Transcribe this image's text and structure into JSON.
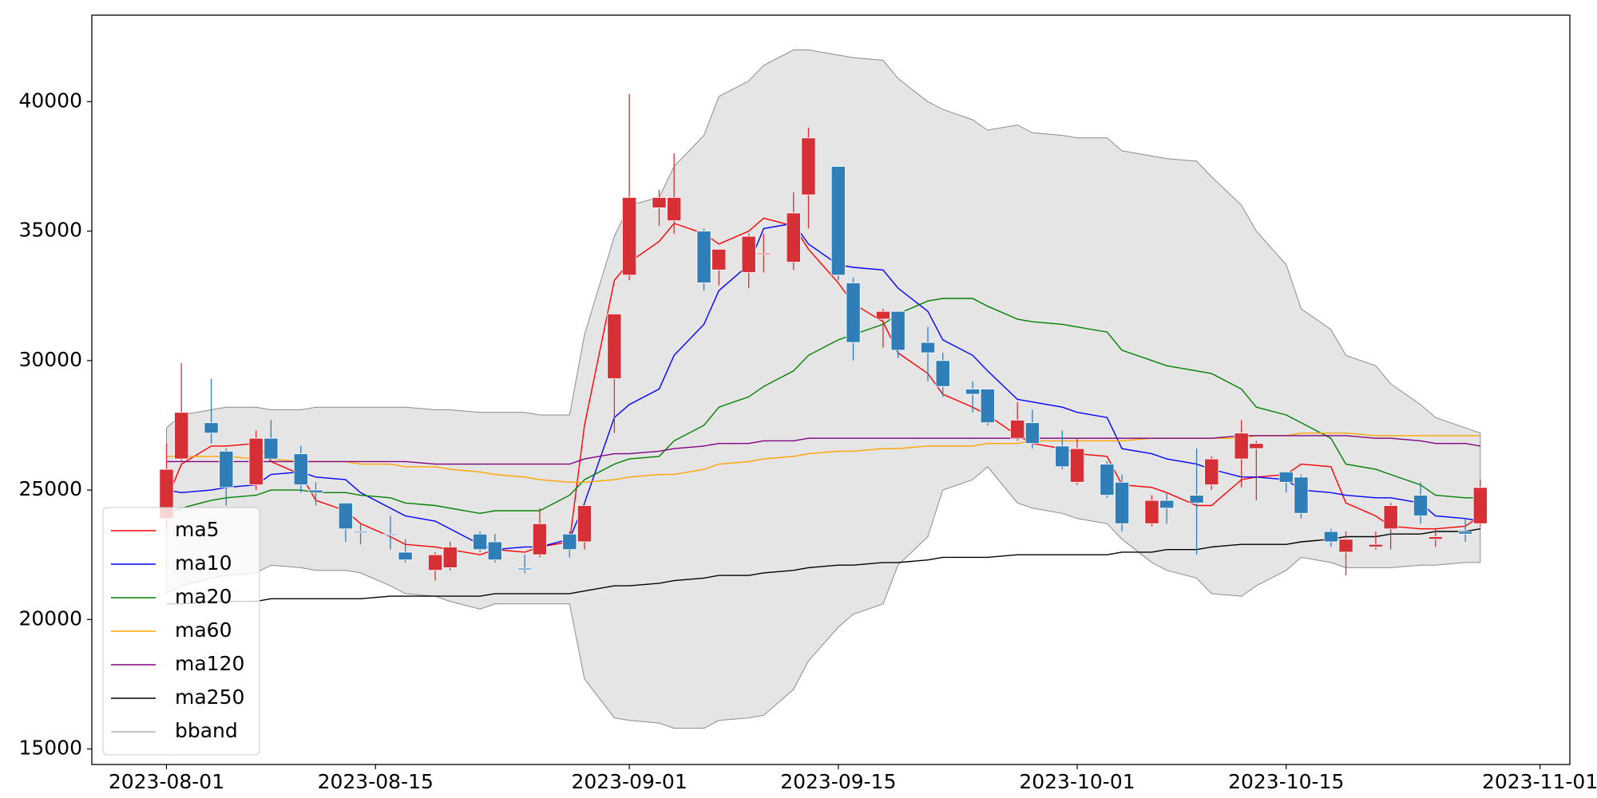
{
  "chart_data": {
    "type": "candlestick",
    "x": [
      "2023-08-01",
      "2023-08-02",
      "2023-08-04",
      "2023-08-05",
      "2023-08-07",
      "2023-08-08",
      "2023-08-10",
      "2023-08-11",
      "2023-08-13",
      "2023-08-14",
      "2023-08-16",
      "2023-08-17",
      "2023-08-19",
      "2023-08-20",
      "2023-08-22",
      "2023-08-23",
      "2023-08-25",
      "2023-08-26",
      "2023-08-28",
      "2023-08-29",
      "2023-08-31",
      "2023-09-01",
      "2023-09-03",
      "2023-09-04",
      "2023-09-06",
      "2023-09-07",
      "2023-09-09",
      "2023-09-10",
      "2023-09-12",
      "2023-09-13",
      "2023-09-15",
      "2023-09-16",
      "2023-09-18",
      "2023-09-19",
      "2023-09-21",
      "2023-09-22",
      "2023-09-24",
      "2023-09-25",
      "2023-09-27",
      "2023-09-28",
      "2023-09-30",
      "2023-10-01",
      "2023-10-03",
      "2023-10-04",
      "2023-10-06",
      "2023-10-07",
      "2023-10-09",
      "2023-10-10",
      "2023-10-12",
      "2023-10-13",
      "2023-10-15",
      "2023-10-16",
      "2023-10-18",
      "2023-10-19",
      "2023-10-21",
      "2023-10-22",
      "2023-10-24",
      "2023-10-25",
      "2023-10-27",
      "2023-10-28"
    ],
    "open": [
      23900,
      26200,
      27600,
      26500,
      25200,
      27000,
      26400,
      25000,
      24500,
      23400,
      23300,
      22600,
      21900,
      22000,
      23300,
      23000,
      21980,
      22500,
      23300,
      23000,
      29300,
      33300,
      35900,
      35400,
      35000,
      33500,
      33400,
      34100,
      33800,
      36400,
      37500,
      33000,
      31600,
      31900,
      30700,
      30000,
      28900,
      28900,
      27000,
      27600,
      26700,
      25300,
      26000,
      25300,
      23700,
      24600,
      24800,
      25200,
      26200,
      26600,
      25700,
      25500,
      23400,
      22600,
      22800,
      23500,
      24800,
      23100,
      23400,
      23700
    ],
    "high": [
      26800,
      29900,
      29300,
      26600,
      27300,
      27700,
      26700,
      25300,
      24500,
      23700,
      24000,
      23100,
      22600,
      23000,
      23400,
      23300,
      22500,
      24300,
      23400,
      24500,
      31800,
      40300,
      36600,
      38000,
      35100,
      34300,
      34900,
      34900,
      36500,
      39000,
      37500,
      33200,
      32000,
      31900,
      31300,
      30300,
      29200,
      28900,
      28400,
      28100,
      27300,
      27000,
      26100,
      25600,
      24800,
      24900,
      26600,
      26300,
      27700,
      26900,
      25700,
      25600,
      23500,
      23400,
      23400,
      24500,
      25300,
      23500,
      23900,
      25400
    ],
    "low": [
      23500,
      26100,
      26800,
      24400,
      25000,
      26100,
      24900,
      24400,
      23000,
      22900,
      22700,
      22200,
      21500,
      21900,
      22600,
      22200,
      21800,
      22400,
      22400,
      22700,
      27200,
      33100,
      35200,
      34900,
      32700,
      32900,
      32800,
      33400,
      33500,
      35100,
      33100,
      30000,
      30500,
      30100,
      29200,
      28600,
      28000,
      27500,
      26900,
      26600,
      25800,
      25200,
      24700,
      23400,
      23600,
      23700,
      22500,
      25000,
      25100,
      24600,
      24900,
      23900,
      22800,
      21700,
      22700,
      22700,
      23700,
      22800,
      23000,
      23600
    ],
    "close": [
      25800,
      28000,
      27200,
      25100,
      27000,
      26200,
      25200,
      24900,
      23500,
      23350,
      23280,
      22300,
      22500,
      22800,
      22700,
      22300,
      21920,
      23700,
      22700,
      24400,
      31800,
      36300,
      36300,
      36300,
      33000,
      34300,
      34800,
      34150,
      35700,
      38600,
      33300,
      30700,
      31900,
      30400,
      30300,
      29000,
      28700,
      27600,
      27700,
      26800,
      25900,
      26600,
      24800,
      23700,
      24600,
      24300,
      24500,
      26200,
      27200,
      26800,
      25300,
      24100,
      23000,
      23100,
      22900,
      24400,
      24000,
      23200,
      23300,
      25100
    ],
    "up_color": "#d62f35",
    "down_color": "#2f7eb8",
    "series": [
      {
        "name": "ma5",
        "color": "#ff0000",
        "values": [
          24600,
          26000,
          26700,
          26700,
          26800,
          26100,
          25600,
          24600,
          24200,
          23700,
          23200,
          22900,
          22800,
          22700,
          22500,
          22700,
          22600,
          22800,
          23000,
          27500,
          33100,
          33800,
          34600,
          35300,
          34900,
          34500,
          35000,
          35500,
          35200,
          34300,
          33000,
          32200,
          31500,
          30300,
          29500,
          28700,
          28200,
          27900,
          27100,
          26800,
          26600,
          26400,
          26300,
          25200,
          25100,
          24900,
          24400,
          24400,
          25400,
          25500,
          25600,
          26000,
          25900,
          24500,
          24000,
          23600,
          23500,
          23500,
          23600,
          24000
        ]
      },
      {
        "name": "ma10",
        "color": "#0000ff",
        "values": [
          25000,
          24900,
          25000,
          25100,
          25200,
          25600,
          25700,
          25500,
          25400,
          24900,
          24300,
          24000,
          23800,
          23500,
          22900,
          22700,
          22800,
          22800,
          23100,
          24500,
          27800,
          28300,
          28900,
          30200,
          31400,
          32700,
          33700,
          35100,
          35300,
          34500,
          33700,
          33600,
          33500,
          32800,
          31900,
          30800,
          30200,
          29600,
          28500,
          28400,
          28200,
          28000,
          27800,
          26600,
          26400,
          26200,
          26000,
          25800,
          25500,
          25500,
          25400,
          25000,
          24900,
          24800,
          24700,
          24700,
          24500,
          24000,
          23900,
          23800
        ]
      },
      {
        "name": "ma20",
        "color": "#008000",
        "values": [
          24100,
          24300,
          24600,
          24700,
          24800,
          25000,
          25000,
          24900,
          24900,
          24800,
          24700,
          24500,
          24400,
          24300,
          24100,
          24200,
          24200,
          24200,
          24800,
          25400,
          26000,
          26200,
          26300,
          26900,
          27500,
          28200,
          28600,
          29000,
          29600,
          30200,
          30800,
          31000,
          31400,
          31800,
          32300,
          32400,
          32400,
          32100,
          31600,
          31500,
          31400,
          31300,
          31100,
          30400,
          30000,
          29800,
          29600,
          29500,
          28900,
          28200,
          27900,
          27600,
          27000,
          26000,
          25800,
          25600,
          25200,
          24800,
          24700,
          24700
        ]
      },
      {
        "name": "ma60",
        "color": "#ffa500",
        "values": [
          26300,
          26300,
          26300,
          26300,
          26200,
          26200,
          26100,
          26100,
          26100,
          26000,
          26000,
          25900,
          25900,
          25800,
          25700,
          25600,
          25500,
          25400,
          25300,
          25300,
          25400,
          25500,
          25600,
          25600,
          25800,
          26000,
          26100,
          26200,
          26300,
          26400,
          26500,
          26500,
          26600,
          26600,
          26700,
          26700,
          26700,
          26800,
          26800,
          26900,
          26900,
          26900,
          26900,
          26900,
          27000,
          27000,
          27000,
          27000,
          27000,
          27100,
          27100,
          27200,
          27200,
          27200,
          27100,
          27100,
          27100,
          27100,
          27100,
          27100
        ]
      },
      {
        "name": "ma120",
        "color": "#800080",
        "values": [
          26100,
          26100,
          26100,
          26100,
          26100,
          26100,
          26100,
          26100,
          26100,
          26100,
          26100,
          26100,
          26000,
          26000,
          26000,
          26000,
          26000,
          26000,
          26000,
          26200,
          26400,
          26400,
          26500,
          26600,
          26700,
          26800,
          26800,
          26900,
          26900,
          27000,
          27000,
          27000,
          27000,
          27000,
          27000,
          27000,
          27000,
          27000,
          27000,
          27000,
          27000,
          27000,
          27000,
          27000,
          27000,
          27000,
          27000,
          27000,
          27100,
          27100,
          27100,
          27100,
          27100,
          27100,
          27000,
          27000,
          26900,
          26800,
          26800,
          26700
        ]
      },
      {
        "name": "ma250",
        "color": "#000000",
        "values": [
          20600,
          20600,
          20700,
          20700,
          20700,
          20800,
          20800,
          20800,
          20800,
          20800,
          20900,
          20900,
          20900,
          20900,
          20900,
          21000,
          21000,
          21000,
          21000,
          21100,
          21300,
          21300,
          21400,
          21500,
          21600,
          21700,
          21700,
          21800,
          21900,
          22000,
          22100,
          22100,
          22200,
          22200,
          22300,
          22400,
          22400,
          22400,
          22500,
          22500,
          22500,
          22500,
          22500,
          22600,
          22600,
          22700,
          22700,
          22800,
          22900,
          22900,
          22900,
          23000,
          23100,
          23200,
          23200,
          23300,
          23300,
          23400,
          23400,
          23500
        ]
      }
    ],
    "bband": {
      "name": "bband",
      "color": "#e5e5e5",
      "edge_color": "#8c8c8c",
      "upper": [
        27400,
        27900,
        28100,
        28200,
        28200,
        28100,
        28100,
        28200,
        28200,
        28200,
        28200,
        28200,
        28100,
        28100,
        28000,
        28000,
        28000,
        27900,
        27900,
        31000,
        34800,
        36000,
        36300,
        37500,
        38700,
        40200,
        40800,
        41400,
        42000,
        42000,
        41800,
        41700,
        41600,
        40900,
        40000,
        39700,
        39300,
        38900,
        39100,
        38800,
        38700,
        38600,
        38600,
        38100,
        37900,
        37800,
        37700,
        37100,
        36000,
        35000,
        33700,
        32000,
        31200,
        30200,
        29800,
        29100,
        28300,
        27800,
        27400,
        27200
      ],
      "lower": [
        21000,
        21300,
        21600,
        21700,
        21800,
        22100,
        22000,
        21900,
        21900,
        21800,
        21300,
        21000,
        20900,
        20700,
        20400,
        20600,
        20600,
        20600,
        20600,
        17700,
        16200,
        16100,
        16000,
        15800,
        15800,
        16100,
        16200,
        16300,
        17300,
        18400,
        19700,
        20200,
        20600,
        22100,
        23200,
        25000,
        25400,
        25900,
        24500,
        24300,
        24100,
        23900,
        23700,
        23100,
        22200,
        21900,
        21600,
        21000,
        20900,
        21300,
        21900,
        22400,
        22200,
        22000,
        22000,
        22000,
        22100,
        22100,
        22200,
        22200
      ]
    },
    "xlim": [
      "2023-07-27",
      "2023-11-03"
    ],
    "xticks": [
      "2023-08-01",
      "2023-08-15",
      "2023-09-01",
      "2023-09-15",
      "2023-10-01",
      "2023-10-15",
      "2023-11-01"
    ],
    "ylim": [
      14400,
      43340
    ],
    "yticks": [
      15000,
      20000,
      25000,
      30000,
      35000,
      40000
    ],
    "legend": "lower left"
  }
}
